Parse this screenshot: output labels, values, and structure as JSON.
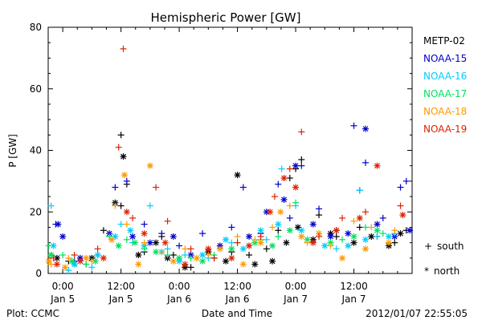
{
  "chart_data": {
    "type": "scatter",
    "title": "Hemispheric Power [GW]",
    "ylabel": "P [GW]",
    "xlabel": "Date and Time",
    "ylim": [
      0,
      80
    ],
    "yticks": [
      0,
      20,
      40,
      60,
      80
    ],
    "xlim": [
      -0.125,
      3.0
    ],
    "x_unit": "days since 2012-01-05 00:00",
    "xticks": [
      {
        "x": 0.0,
        "top": "0:00",
        "bottom": "Jan 5"
      },
      {
        "x": 0.5,
        "top": "12:00",
        "bottom": "Jan 5"
      },
      {
        "x": 1.0,
        "top": "0:00",
        "bottom": "Jan 6"
      },
      {
        "x": 1.5,
        "top": "12:00",
        "bottom": "Jan 6"
      },
      {
        "x": 2.0,
        "top": "0:00",
        "bottom": "Jan 7"
      },
      {
        "x": 2.5,
        "top": "12:00",
        "bottom": "Jan 7"
      }
    ],
    "marker_legend": [
      {
        "symbol": "+",
        "label": "south"
      },
      {
        "symbol": "*",
        "label": "north"
      }
    ],
    "series": [
      {
        "name": "METP-02",
        "color": "#000000",
        "south": [
          [
            -0.1,
            6
          ],
          [
            0.05,
            4
          ],
          [
            0.2,
            3
          ],
          [
            0.35,
            14
          ],
          [
            0.5,
            22
          ],
          [
            0.5,
            45
          ],
          [
            0.55,
            29
          ],
          [
            0.7,
            7
          ],
          [
            0.85,
            12
          ],
          [
            0.95,
            6
          ],
          [
            1.1,
            2
          ],
          [
            1.3,
            5
          ],
          [
            1.45,
            7
          ],
          [
            1.6,
            6
          ],
          [
            1.75,
            8
          ],
          [
            1.85,
            14
          ],
          [
            1.95,
            31
          ],
          [
            2.0,
            34
          ],
          [
            2.05,
            37
          ],
          [
            2.2,
            19
          ],
          [
            2.35,
            12
          ],
          [
            2.55,
            15
          ],
          [
            2.7,
            12
          ],
          [
            2.85,
            10
          ],
          [
            2.95,
            14
          ]
        ],
        "north": [
          [
            -0.05,
            5
          ],
          [
            0.1,
            3
          ],
          [
            0.25,
            5
          ],
          [
            0.45,
            23
          ],
          [
            0.52,
            38
          ],
          [
            0.65,
            6
          ],
          [
            0.8,
            10
          ],
          [
            0.9,
            5
          ],
          [
            1.05,
            2
          ],
          [
            1.25,
            7
          ],
          [
            1.4,
            4
          ],
          [
            1.5,
            32
          ],
          [
            1.65,
            3
          ],
          [
            1.8,
            4
          ],
          [
            1.92,
            10
          ],
          [
            2.02,
            15
          ],
          [
            2.15,
            11
          ],
          [
            2.3,
            13
          ],
          [
            2.5,
            10
          ],
          [
            2.65,
            12
          ],
          [
            2.8,
            9
          ],
          [
            2.9,
            13
          ]
        ]
      },
      {
        "name": "NOAA-15",
        "color": "#0000cc",
        "south": [
          [
            -0.06,
            16
          ],
          [
            0.1,
            4
          ],
          [
            0.3,
            6
          ],
          [
            0.45,
            28
          ],
          [
            0.55,
            30
          ],
          [
            0.7,
            16
          ],
          [
            0.85,
            13
          ],
          [
            1.0,
            9
          ],
          [
            1.2,
            13
          ],
          [
            1.45,
            15
          ],
          [
            1.55,
            28
          ],
          [
            1.7,
            13
          ],
          [
            1.85,
            29
          ],
          [
            1.95,
            18
          ],
          [
            2.05,
            35
          ],
          [
            2.2,
            21
          ],
          [
            2.35,
            14
          ],
          [
            2.5,
            48
          ],
          [
            2.55,
            27
          ],
          [
            2.6,
            36
          ],
          [
            2.75,
            18
          ],
          [
            2.9,
            28
          ],
          [
            2.95,
            30
          ]
        ],
        "north": [
          [
            -0.04,
            16
          ],
          [
            0.0,
            12
          ],
          [
            0.15,
            5
          ],
          [
            0.4,
            13
          ],
          [
            0.6,
            12
          ],
          [
            0.75,
            10
          ],
          [
            0.95,
            12
          ],
          [
            1.1,
            6
          ],
          [
            1.35,
            9
          ],
          [
            1.6,
            12
          ],
          [
            1.75,
            20
          ],
          [
            1.9,
            24
          ],
          [
            2.0,
            35
          ],
          [
            2.15,
            16
          ],
          [
            2.3,
            12
          ],
          [
            2.45,
            13
          ],
          [
            2.6,
            47
          ],
          [
            2.7,
            16
          ],
          [
            2.85,
            12
          ],
          [
            2.98,
            14
          ]
        ]
      },
      {
        "name": "NOAA-16",
        "color": "#00ccff",
        "south": [
          [
            -0.1,
            22
          ],
          [
            0.05,
            1
          ],
          [
            0.25,
            2
          ],
          [
            0.5,
            16
          ],
          [
            0.6,
            10
          ],
          [
            0.75,
            22
          ],
          [
            0.9,
            8
          ],
          [
            1.05,
            6
          ],
          [
            1.25,
            5
          ],
          [
            1.45,
            10
          ],
          [
            1.6,
            9
          ],
          [
            1.75,
            11
          ],
          [
            1.88,
            34
          ],
          [
            2.0,
            22
          ],
          [
            2.15,
            10
          ],
          [
            2.35,
            8
          ],
          [
            2.55,
            27
          ],
          [
            2.7,
            12
          ],
          [
            2.85,
            13
          ]
        ],
        "north": [
          [
            -0.08,
            9
          ],
          [
            0.1,
            3
          ],
          [
            0.3,
            6
          ],
          [
            0.45,
            12
          ],
          [
            0.58,
            14
          ],
          [
            0.7,
            9
          ],
          [
            0.85,
            7
          ],
          [
            1.0,
            4
          ],
          [
            1.2,
            6
          ],
          [
            1.4,
            11
          ],
          [
            1.55,
            8
          ],
          [
            1.7,
            14
          ],
          [
            1.85,
            16
          ],
          [
            2.05,
            14
          ],
          [
            2.25,
            9
          ],
          [
            2.45,
            9
          ],
          [
            2.6,
            11
          ],
          [
            2.8,
            12
          ]
        ]
      },
      {
        "name": "NOAA-17",
        "color": "#00e060",
        "south": [
          [
            -0.12,
            9
          ],
          [
            0.0,
            6
          ],
          [
            0.2,
            3
          ],
          [
            0.4,
            12
          ],
          [
            0.55,
            11
          ],
          [
            0.7,
            8
          ],
          [
            0.9,
            6
          ],
          [
            1.1,
            5
          ],
          [
            1.3,
            6
          ],
          [
            1.5,
            10
          ],
          [
            1.7,
            11
          ],
          [
            1.85,
            12
          ],
          [
            2.0,
            23
          ],
          [
            2.2,
            13
          ],
          [
            2.4,
            11
          ],
          [
            2.6,
            15
          ],
          [
            2.75,
            13
          ]
        ],
        "north": [
          [
            -0.1,
            6
          ],
          [
            0.08,
            4
          ],
          [
            0.28,
            4
          ],
          [
            0.48,
            9
          ],
          [
            0.62,
            10
          ],
          [
            0.8,
            7
          ],
          [
            1.0,
            5
          ],
          [
            1.2,
            4
          ],
          [
            1.45,
            8
          ],
          [
            1.65,
            10
          ],
          [
            1.8,
            9
          ],
          [
            1.95,
            14
          ],
          [
            2.1,
            11
          ],
          [
            2.3,
            10
          ],
          [
            2.5,
            12
          ],
          [
            2.7,
            14
          ]
        ]
      },
      {
        "name": "NOAA-18",
        "color": "#ff9900",
        "south": [
          [
            -0.1,
            3
          ],
          [
            0.05,
            5
          ],
          [
            0.25,
            4
          ],
          [
            0.45,
            22
          ],
          [
            0.55,
            16
          ],
          [
            0.7,
            10
          ],
          [
            0.85,
            7
          ],
          [
            1.05,
            8
          ],
          [
            1.25,
            6
          ],
          [
            1.5,
            12
          ],
          [
            1.65,
            11
          ],
          [
            1.8,
            15
          ],
          [
            1.95,
            22
          ],
          [
            2.1,
            10
          ],
          [
            2.3,
            9
          ],
          [
            2.5,
            17
          ],
          [
            2.65,
            15
          ],
          [
            2.85,
            14
          ]
        ],
        "north": [
          [
            -0.12,
            4
          ],
          [
            0.02,
            2
          ],
          [
            0.2,
            5
          ],
          [
            0.42,
            11
          ],
          [
            0.53,
            32
          ],
          [
            0.65,
            3
          ],
          [
            0.75,
            35
          ],
          [
            0.95,
            4
          ],
          [
            1.15,
            5
          ],
          [
            1.35,
            8
          ],
          [
            1.55,
            3
          ],
          [
            1.7,
            10
          ],
          [
            1.87,
            20
          ],
          [
            2.05,
            12
          ],
          [
            2.2,
            13
          ],
          [
            2.4,
            5
          ],
          [
            2.6,
            8
          ],
          [
            2.8,
            10
          ]
        ]
      },
      {
        "name": "NOAA-19",
        "color": "#dd2200",
        "south": [
          [
            -0.08,
            5
          ],
          [
            0.1,
            6
          ],
          [
            0.3,
            8
          ],
          [
            0.48,
            41
          ],
          [
            0.52,
            73
          ],
          [
            0.6,
            18
          ],
          [
            0.8,
            28
          ],
          [
            0.9,
            17
          ],
          [
            1.1,
            8
          ],
          [
            1.3,
            5
          ],
          [
            1.5,
            10
          ],
          [
            1.7,
            12
          ],
          [
            1.82,
            25
          ],
          [
            1.95,
            34
          ],
          [
            2.05,
            46
          ],
          [
            2.2,
            12
          ],
          [
            2.4,
            18
          ],
          [
            2.6,
            20
          ],
          [
            2.9,
            22
          ]
        ],
        "north": [
          [
            -0.05,
            3
          ],
          [
            0.15,
            4
          ],
          [
            0.35,
            5
          ],
          [
            0.55,
            20
          ],
          [
            0.7,
            13
          ],
          [
            0.88,
            10
          ],
          [
            1.05,
            3
          ],
          [
            1.25,
            8
          ],
          [
            1.45,
            5
          ],
          [
            1.6,
            9
          ],
          [
            1.78,
            20
          ],
          [
            1.9,
            31
          ],
          [
            2.0,
            28
          ],
          [
            2.15,
            10
          ],
          [
            2.35,
            14
          ],
          [
            2.55,
            18
          ],
          [
            2.7,
            35
          ],
          [
            2.92,
            19
          ]
        ]
      }
    ]
  },
  "footer": {
    "left": "Plot: CCMC",
    "center": "Date and Time",
    "right": "2012/01/07 22:55:05"
  }
}
